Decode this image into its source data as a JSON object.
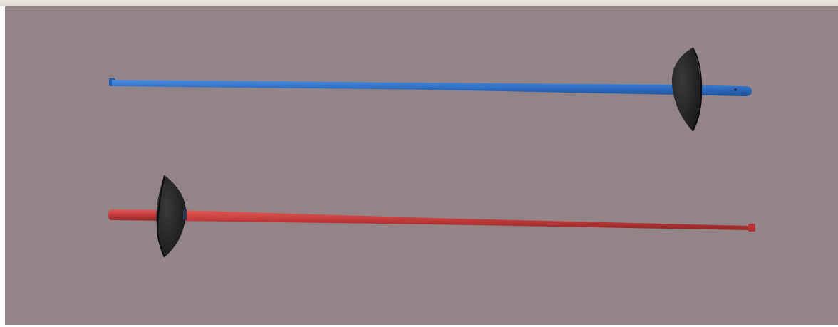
{
  "scene": {
    "background_color": "#938587",
    "objects": [
      {
        "name": "blue-fencing-epee",
        "blade_color": "#2f6fc4",
        "guard_color": "#1f1f1f"
      },
      {
        "name": "red-fencing-epee",
        "blade_color": "#c23a3a",
        "guard_color": "#1f1f1f"
      }
    ]
  }
}
